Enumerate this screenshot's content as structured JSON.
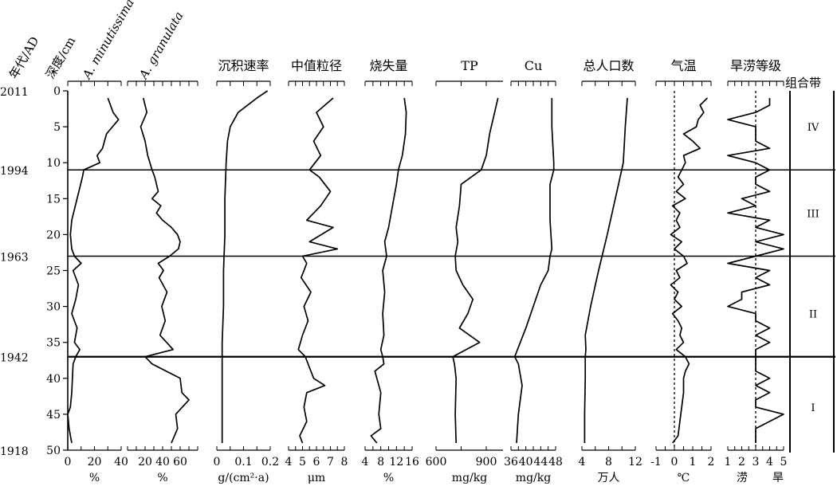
{
  "chart_data": {
    "type": "line",
    "orientation": "stratigraphic-depth-profile",
    "header": {
      "year_label": "年代/AD",
      "depth_label": "深度/cm",
      "zone_label": "组合带"
    },
    "depth_axis": {
      "range": [
        0,
        50
      ],
      "ticks": [
        0,
        5,
        10,
        15,
        20,
        25,
        30,
        35,
        40,
        45,
        50
      ],
      "tick_labels": [
        "0",
        "5",
        "10",
        "15",
        "20",
        "25",
        "30",
        "35",
        "40",
        "45",
        "50"
      ]
    },
    "age_marks": [
      {
        "depth": 0,
        "label": "2011"
      },
      {
        "depth": 11,
        "label": "1994"
      },
      {
        "depth": 23,
        "label": "1963"
      },
      {
        "depth": 37,
        "label": "1942"
      },
      {
        "depth": 50,
        "label": "1918"
      }
    ],
    "zones": {
      "boundaries": [
        11,
        23,
        37
      ],
      "labels": [
        {
          "label": "IV",
          "depth": 5
        },
        {
          "label": "III",
          "depth": 17
        },
        {
          "label": "II",
          "depth": 31
        },
        {
          "label": "I",
          "depth": 44
        }
      ]
    },
    "panels": [
      {
        "id": "minutissima",
        "title": "A. minutissima",
        "title_italic": true,
        "unit": "%",
        "range": [
          0,
          40
        ],
        "tick_values": [
          0,
          20,
          40
        ],
        "tick_labels": [
          "0",
          "20",
          "40"
        ],
        "depth": [
          1,
          3,
          4,
          6,
          8,
          9,
          10,
          11,
          12,
          15,
          18,
          20,
          22,
          23,
          24,
          25,
          27,
          29,
          31,
          33,
          35,
          36,
          37,
          38,
          42,
          44,
          45,
          47,
          49
        ],
        "values": [
          30,
          34,
          38,
          29,
          26,
          22,
          24,
          12,
          11,
          7,
          3,
          2,
          3,
          5,
          10,
          4,
          8,
          6,
          3,
          7,
          5,
          9,
          6,
          4,
          3,
          2,
          0,
          1,
          3
        ]
      },
      {
        "id": "granulata",
        "title": "A. granulata",
        "title_italic": true,
        "unit": "%",
        "range": [
          0,
          80
        ],
        "tick_values": [
          20,
          40,
          60
        ],
        "tick_labels": [
          "20",
          "40",
          "60"
        ],
        "depth": [
          1,
          3,
          5,
          7,
          9,
          11,
          12,
          14,
          15,
          16,
          17,
          18,
          19,
          20,
          21,
          22,
          23,
          24,
          25,
          26,
          28,
          30,
          32,
          34,
          36,
          37,
          38,
          40,
          42,
          43,
          45,
          47,
          49
        ],
        "values": [
          18,
          22,
          15,
          20,
          23,
          28,
          31,
          35,
          28,
          38,
          33,
          40,
          50,
          57,
          60,
          58,
          48,
          35,
          41,
          36,
          45,
          39,
          43,
          37,
          52,
          20,
          28,
          60,
          62,
          70,
          55,
          57,
          50
        ]
      },
      {
        "id": "sed_rate",
        "title": "沉积速率",
        "unit": "g/(cm²·a)",
        "range": [
          0,
          0.2
        ],
        "tick_values": [
          0,
          0.1,
          0.2
        ],
        "tick_labels": [
          "0",
          "0.1",
          "0.2"
        ],
        "depth": [
          0,
          1,
          3,
          5,
          7,
          10,
          15,
          20,
          25,
          30,
          35,
          40,
          45,
          49
        ],
        "values": [
          0.19,
          0.15,
          0.08,
          0.05,
          0.04,
          0.035,
          0.03,
          0.03,
          0.025,
          0.025,
          0.02,
          0.02,
          0.02,
          0.02
        ]
      },
      {
        "id": "grain_size",
        "title": "中值粒径",
        "unit": "μm",
        "range": [
          4,
          8
        ],
        "tick_values": [
          4,
          5,
          6,
          7,
          8
        ],
        "tick_labels": [
          "4",
          "5",
          "6",
          "7",
          "8"
        ],
        "depth": [
          1,
          3,
          5,
          7,
          9,
          11,
          12,
          14,
          16,
          18,
          19,
          21,
          22,
          23,
          24,
          26,
          28,
          30,
          32,
          34,
          36,
          37,
          38,
          40,
          41,
          42,
          44,
          46,
          48,
          49
        ],
        "values": [
          7.2,
          6.0,
          6.5,
          5.8,
          6.3,
          5.5,
          6.2,
          7.0,
          6.3,
          5.3,
          7.2,
          5.5,
          7.5,
          5.0,
          5.3,
          4.9,
          5.6,
          5.1,
          5.4,
          5.0,
          4.7,
          5.2,
          5.4,
          5.8,
          6.6,
          5.3,
          5.1,
          5.3,
          4.8,
          5.0
        ]
      },
      {
        "id": "loi",
        "title": "烧失量",
        "unit": "%",
        "range": [
          4,
          16
        ],
        "tick_values": [
          4,
          8,
          12,
          16
        ],
        "tick_labels": [
          "4",
          "8",
          "12",
          "16"
        ],
        "depth": [
          1,
          3,
          6,
          9,
          11,
          13,
          16,
          19,
          21,
          23,
          25,
          28,
          31,
          34,
          36,
          37,
          38,
          39,
          42,
          45,
          47,
          48,
          49
        ],
        "values": [
          14.0,
          14.5,
          14.3,
          13.5,
          12.5,
          12.0,
          11.0,
          10.0,
          9.0,
          9.5,
          8.5,
          9.0,
          8.5,
          8.8,
          8.0,
          8.5,
          8.8,
          6.5,
          8.0,
          7.5,
          8.0,
          5.5,
          7.0
        ]
      },
      {
        "id": "tp",
        "title": "TP",
        "unit": "mg/kg",
        "range": [
          600,
          1000
        ],
        "tick_values": [
          600,
          900
        ],
        "tick_labels": [
          "600",
          "900"
        ],
        "depth": [
          1,
          3,
          6,
          9,
          11,
          13,
          16,
          19,
          21,
          23,
          25,
          27,
          29,
          31,
          33,
          35,
          37,
          38,
          40,
          45,
          49
        ],
        "values": [
          970,
          950,
          920,
          900,
          870,
          750,
          740,
          720,
          730,
          715,
          720,
          760,
          820,
          790,
          740,
          860,
          700,
          710,
          720,
          715,
          720
        ]
      },
      {
        "id": "cu",
        "title": "Cu",
        "unit": "mg/kg",
        "range": [
          36,
          48
        ],
        "tick_values": [
          36,
          40,
          44,
          48
        ],
        "tick_labels": [
          "36",
          "40",
          "44",
          "48"
        ],
        "depth": [
          1,
          5,
          10,
          11,
          13,
          18,
          22,
          23,
          25,
          27,
          30,
          33,
          37,
          38,
          41,
          45,
          49
        ],
        "values": [
          47,
          47,
          47.5,
          47.5,
          46.5,
          46.5,
          47,
          46.5,
          46,
          44,
          42,
          40,
          37,
          38,
          39,
          38,
          37.5
        ]
      },
      {
        "id": "population",
        "title": "总人口数",
        "unit": "万人",
        "range": [
          4,
          12
        ],
        "tick_values": [
          4,
          8,
          12
        ],
        "tick_labels": [
          "4",
          "8",
          "12"
        ],
        "depth": [
          1,
          5,
          10,
          15,
          20,
          25,
          30,
          34,
          36,
          37,
          40,
          45,
          49
        ],
        "values": [
          10.8,
          10.5,
          10.2,
          9.0,
          7.8,
          6.5,
          5.3,
          4.5,
          4.6,
          4.5,
          4.5,
          4.4,
          4.4
        ]
      },
      {
        "id": "temperature",
        "title": "气温",
        "unit": "℃",
        "range": [
          -1,
          2
        ],
        "tick_values": [
          -1,
          0,
          1,
          2
        ],
        "tick_labels": [
          "-1",
          "0",
          "1",
          "2"
        ],
        "reference_value": 0,
        "depth": [
          1,
          2,
          3,
          4,
          5,
          6,
          7,
          8,
          9,
          10,
          11,
          12,
          13,
          14,
          15,
          16,
          17,
          18,
          19,
          20,
          21,
          22,
          23,
          24,
          25,
          26,
          27,
          28,
          29,
          30,
          31,
          32,
          33,
          34,
          35,
          36,
          37,
          38,
          39,
          40,
          42,
          44,
          46,
          48,
          49
        ],
        "values": [
          1.8,
          1.4,
          1.6,
          1.3,
          1.2,
          0.5,
          1.0,
          1.4,
          0.5,
          0.6,
          0.4,
          0.2,
          0.5,
          0.1,
          0.6,
          -0.1,
          0.3,
          0.1,
          0.3,
          -0.2,
          0.4,
          0.0,
          0.5,
          0.7,
          0.1,
          0.3,
          -0.2,
          0.2,
          0.0,
          0.4,
          -0.1,
          0.2,
          0.4,
          0.3,
          0.5,
          0.1,
          0.6,
          0.8,
          0.6,
          0.5,
          0.5,
          0.4,
          0.3,
          0.2,
          -0.1
        ]
      },
      {
        "id": "drought_flood",
        "title": "旱涝等级",
        "unit_left": "涝",
        "unit_right": "旱",
        "range": [
          1,
          5
        ],
        "tick_values": [
          1,
          2,
          3,
          4,
          5
        ],
        "tick_labels": [
          "1",
          "2",
          "3",
          "4",
          "5"
        ],
        "reference_value": 3,
        "depth": [
          1,
          2,
          3,
          4,
          5,
          6,
          7,
          8,
          9,
          10,
          11,
          12,
          13,
          14,
          15,
          16,
          17,
          18,
          19,
          20,
          21,
          22,
          23,
          24,
          25,
          26,
          27,
          28,
          29,
          30,
          31,
          32,
          33,
          34,
          35,
          36,
          37,
          38,
          39,
          40,
          41,
          42,
          43,
          44,
          45,
          46,
          47,
          48,
          49
        ],
        "values": [
          4,
          4,
          3,
          1,
          3,
          3,
          3,
          4,
          1,
          3,
          4,
          3,
          3,
          4,
          2,
          3,
          1,
          4,
          3,
          5,
          3,
          5,
          3,
          1,
          4,
          3,
          4,
          2,
          2,
          1,
          3,
          3,
          4,
          3,
          4,
          3,
          3,
          3,
          3,
          4,
          3,
          4,
          3,
          3,
          5,
          4,
          3,
          3,
          3
        ]
      }
    ]
  }
}
